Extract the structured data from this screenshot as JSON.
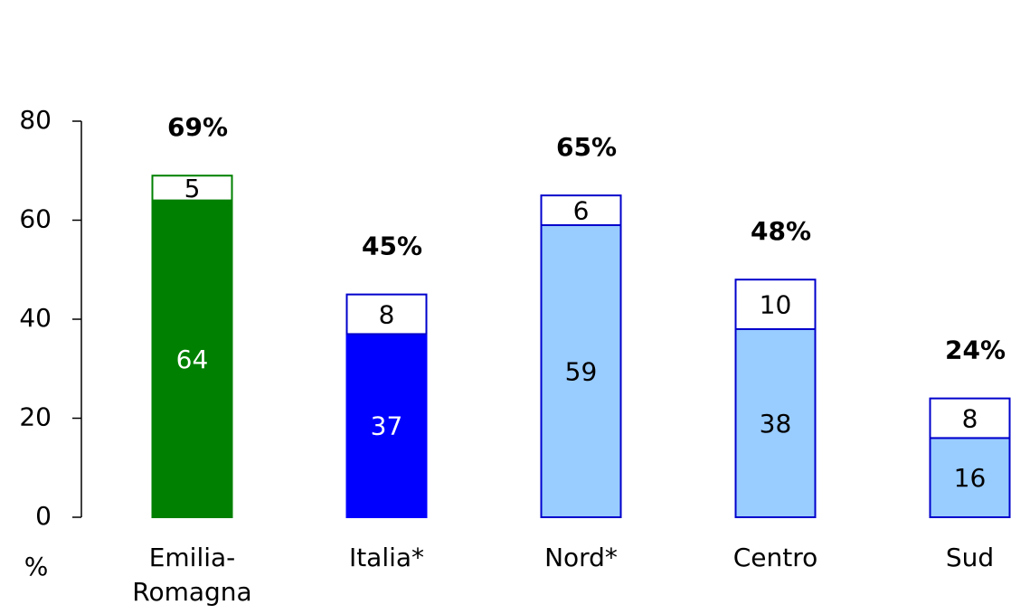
{
  "chart_data": {
    "type": "stacked_bar",
    "categories": [
      "Emilia-\nRomagna",
      "Italia*",
      "Nord*",
      "Centro",
      "Sud"
    ],
    "series": [
      {
        "values": [
          64,
          37,
          59,
          38,
          16
        ],
        "colors": [
          "#008000",
          "#0000ff",
          "#99ccff",
          "#99ccff",
          "#99ccff"
        ],
        "edgecolors": [
          "#008000",
          "#0000ff",
          "#0000cc",
          "#0000cc",
          "#0000cc"
        ],
        "label_colors": [
          "#ffffff",
          "#ffffff",
          "#000000",
          "#000000",
          "#000000"
        ]
      },
      {
        "values": [
          5,
          8,
          6,
          10,
          8
        ],
        "colors": [
          "#ffffff",
          "#ffffff",
          "#ffffff",
          "#ffffff",
          "#ffffff"
        ],
        "edgecolors": [
          "#008000",
          "#0000cc",
          "#0000cc",
          "#0000cc",
          "#0000cc"
        ],
        "label_colors": [
          "#000000",
          "#000000",
          "#000000",
          "#000000",
          "#000000"
        ]
      }
    ],
    "totals": {
      "values": [
        69,
        45,
        65,
        48,
        24
      ],
      "value_labels": [
        "69%",
        "45%",
        "65%",
        "48%",
        "24%"
      ]
    },
    "ylabel": "%",
    "ylim": [
      0,
      80
    ],
    "yticks": [
      0,
      20,
      40,
      60,
      80
    ]
  }
}
